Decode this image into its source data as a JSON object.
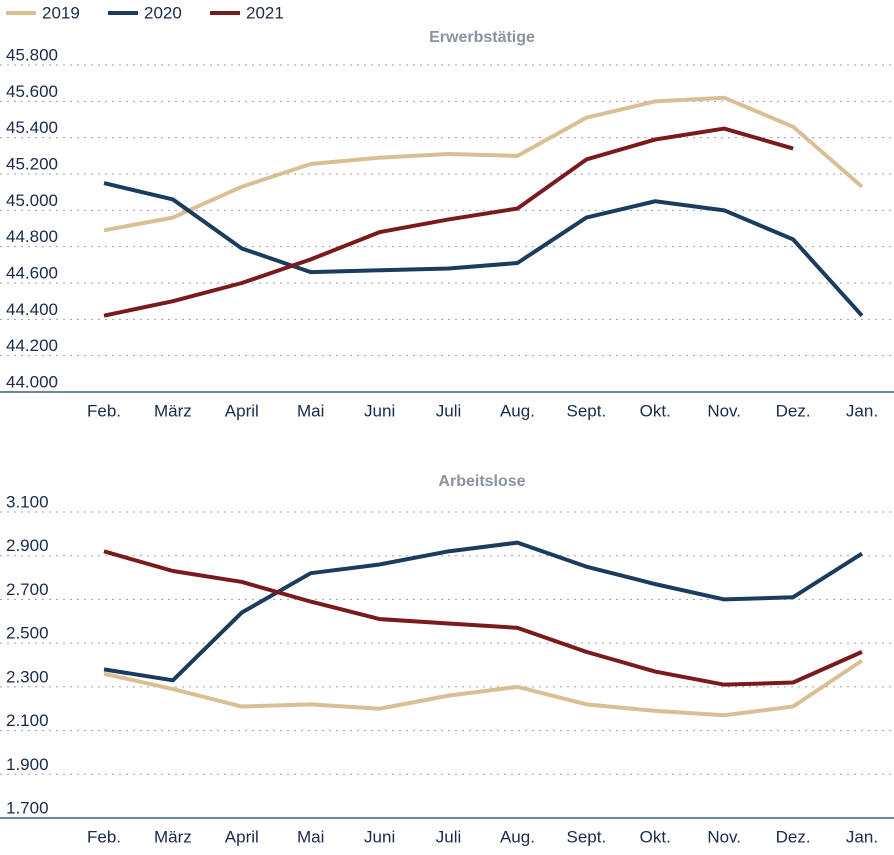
{
  "chart_data": [
    {
      "type": "line",
      "title": "Erwerbstätige",
      "categories": [
        "Feb.",
        "März",
        "April",
        "Mai",
        "Juni",
        "Juli",
        "Aug.",
        "Sept.",
        "Okt.",
        "Nov.",
        "Dez.",
        "Jan."
      ],
      "series": [
        {
          "name": "2019",
          "color": "#d9bf94",
          "values": [
            44890,
            44960,
            45130,
            45255,
            45290,
            45310,
            45300,
            45510,
            45600,
            45620,
            45460,
            45130
          ]
        },
        {
          "name": "2020",
          "color": "#1b3c5e",
          "values": [
            45150,
            45060,
            44790,
            44660,
            44670,
            44680,
            44710,
            44960,
            45050,
            45000,
            44840,
            44420
          ]
        },
        {
          "name": "2021",
          "color": "#7a1a1e",
          "values": [
            44420,
            44500,
            44600,
            44730,
            44880,
            44950,
            45010,
            45280,
            45390,
            45450,
            45340,
            null
          ]
        }
      ],
      "ylim": [
        44000,
        45800
      ],
      "yticks": [
        {
          "value": 44000,
          "label": "44.000"
        },
        {
          "value": 44200,
          "label": "44.200"
        },
        {
          "value": 44400,
          "label": "44.400"
        },
        {
          "value": 44600,
          "label": "44.600"
        },
        {
          "value": 44800,
          "label": "44.800"
        },
        {
          "value": 45000,
          "label": "45.000"
        },
        {
          "value": 45200,
          "label": "45.200"
        },
        {
          "value": 45400,
          "label": "45.400"
        },
        {
          "value": 45600,
          "label": "45.600"
        },
        {
          "value": 45800,
          "label": "45.800"
        }
      ],
      "grid": true
    },
    {
      "type": "line",
      "title": "Arbeitslose",
      "categories": [
        "Feb.",
        "März",
        "April",
        "Mai",
        "Juni",
        "Juli",
        "Aug.",
        "Sept.",
        "Okt.",
        "Nov.",
        "Dez.",
        "Jan."
      ],
      "series": [
        {
          "color": "#d9bf94",
          "values": [
            2360,
            2290,
            2210,
            2220,
            2200,
            2260,
            2300,
            2220,
            2190,
            2170,
            2210,
            2420
          ]
        },
        {
          "color": "#1b3c5e",
          "values": [
            2380,
            2330,
            2640,
            2820,
            2860,
            2920,
            2960,
            2850,
            2770,
            2700,
            2710,
            2910
          ]
        },
        {
          "color": "#7a1a1e",
          "values": [
            2920,
            2830,
            2780,
            2690,
            2610,
            2590,
            2570,
            2460,
            2370,
            2310,
            2320,
            2460
          ]
        }
      ],
      "ylim": [
        1700,
        3100
      ],
      "yticks": [
        {
          "value": 1700,
          "label": "1.700"
        },
        {
          "value": 1900,
          "label": "1.900"
        },
        {
          "value": 2100,
          "label": "2.100"
        },
        {
          "value": 2300,
          "label": "2.300"
        },
        {
          "value": 2500,
          "label": "2.500"
        },
        {
          "value": 2700,
          "label": "2.700"
        },
        {
          "value": 2900,
          "label": "2.900"
        },
        {
          "value": 3100,
          "label": "3.100"
        }
      ],
      "grid": true
    }
  ]
}
